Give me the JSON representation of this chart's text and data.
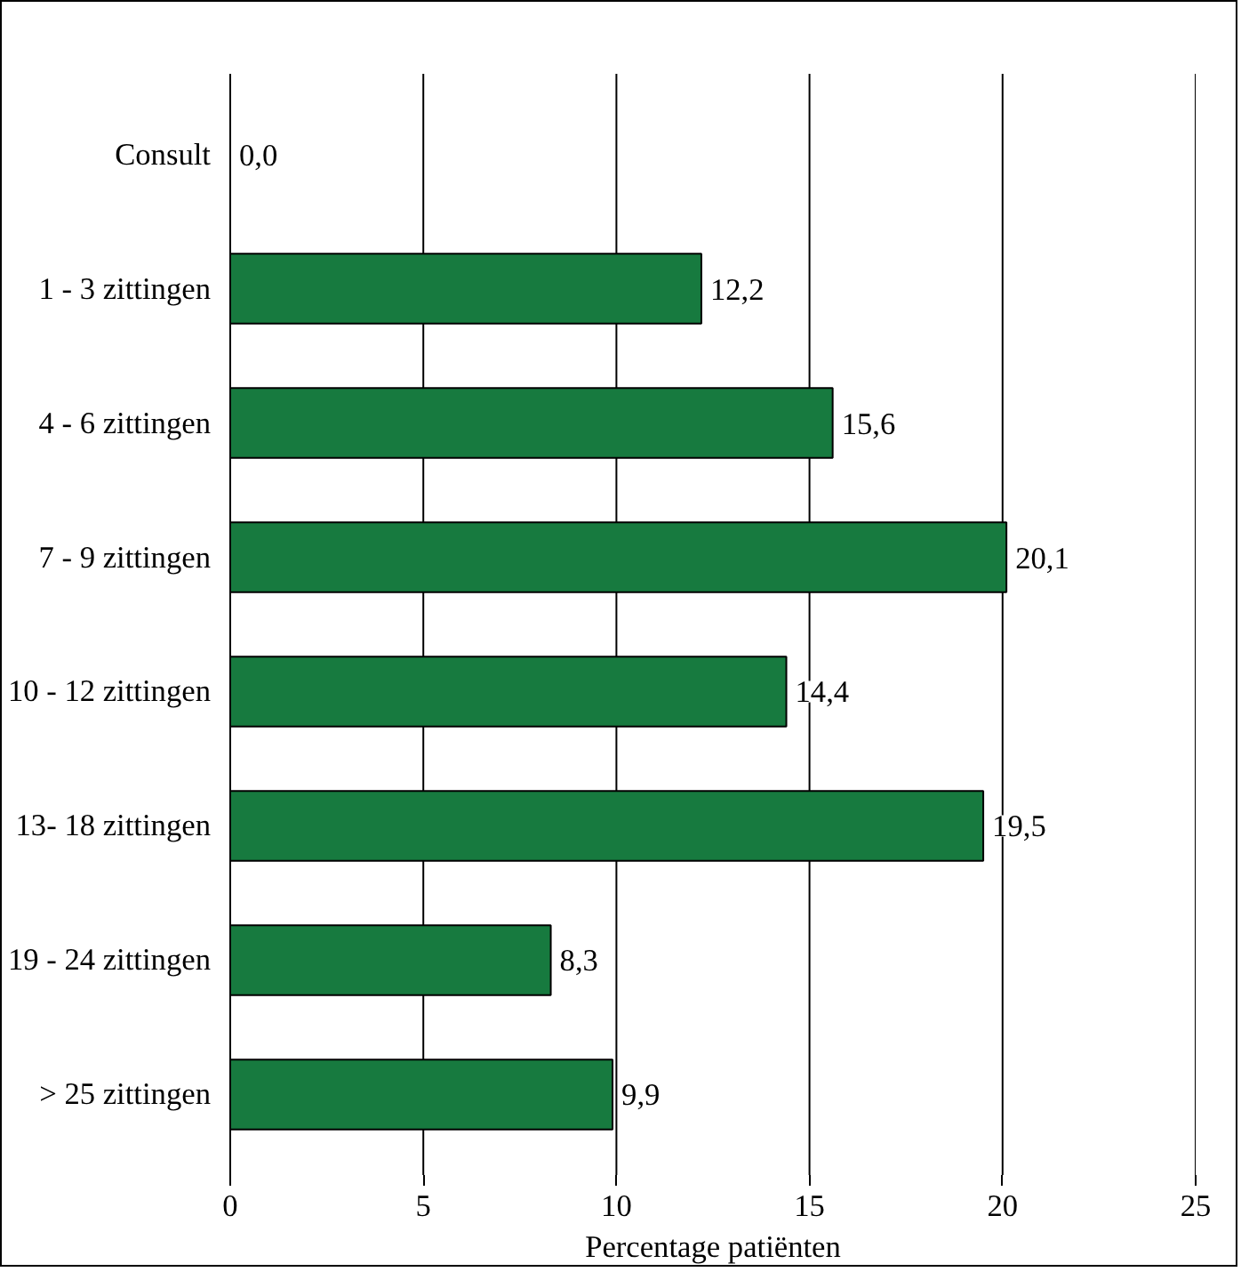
{
  "chart_data": {
    "type": "bar",
    "orientation": "horizontal",
    "xlabel": "Percentage patiënten",
    "categories": [
      "Consult",
      "1 - 3 zittingen",
      "4 - 6 zittingen",
      "7 - 9 zittingen",
      "10 - 12 zittingen",
      "13- 18 zittingen",
      "19 - 24 zittingen",
      "> 25 zittingen"
    ],
    "values": [
      0.0,
      12.2,
      15.6,
      20.1,
      14.4,
      19.5,
      8.3,
      9.9
    ],
    "value_labels": [
      "0,0",
      "12,2",
      "15,6",
      "20,1",
      "14,4",
      "19,5",
      "8,3",
      "9,9"
    ],
    "color": "#177a3f",
    "xlim": [
      0,
      25
    ],
    "xticks": [
      0,
      5,
      10,
      15,
      20,
      25
    ],
    "grid": "x"
  }
}
